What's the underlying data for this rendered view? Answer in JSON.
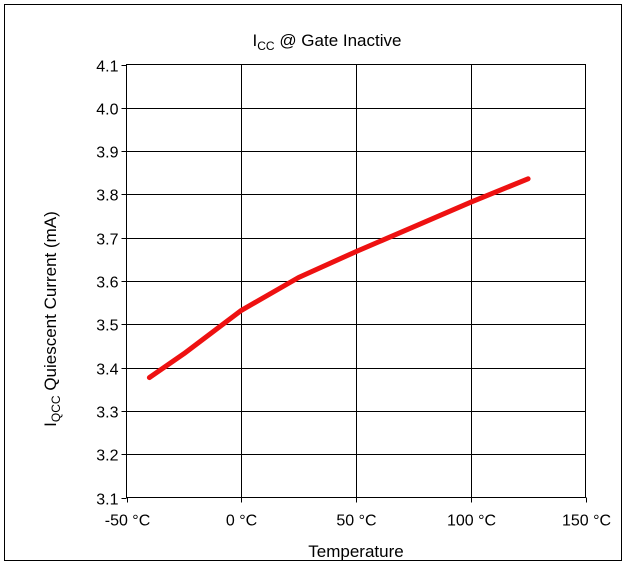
{
  "chart_data": {
    "type": "line",
    "title": {
      "prefix": "I",
      "subscript": "CC",
      "suffix": " @ Gate Inactive"
    },
    "xlabel": "Temperature",
    "ylabel": {
      "prefix": "I",
      "subscript": "QCC",
      "suffix": " Quiescent Current (mA)"
    },
    "xlim": [
      -50,
      150
    ],
    "ylim": [
      3.1,
      4.1
    ],
    "xticks": [
      -50,
      0,
      50,
      100,
      150
    ],
    "xtick_labels": [
      "-50 °C",
      "0 °C",
      "50 °C",
      "100 °C",
      "150 °C"
    ],
    "yticks": [
      3.1,
      3.2,
      3.3,
      3.4,
      3.5,
      3.6,
      3.7,
      3.8,
      3.9,
      4.0,
      4.1
    ],
    "ytick_labels": [
      "3.1",
      "3.2",
      "3.3",
      "3.4",
      "3.5",
      "3.6",
      "3.7",
      "3.8",
      "3.9",
      "4.0",
      "4.1"
    ],
    "grid": true,
    "legend": "none",
    "series": [
      {
        "color": "#ee1111",
        "x": [
          -40,
          -25,
          0,
          25,
          50,
          75,
          100,
          125
        ],
        "y": [
          3.377,
          3.432,
          3.532,
          3.608,
          3.668,
          3.725,
          3.782,
          3.836
        ]
      }
    ]
  }
}
